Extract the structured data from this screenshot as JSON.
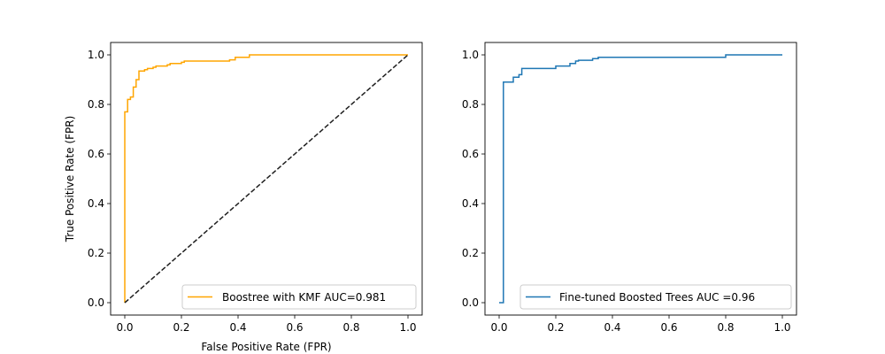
{
  "chart_data": [
    {
      "type": "line",
      "xlabel": "False Positive Rate (FPR)",
      "ylabel": "True Positive Rate (FPR)",
      "xlim": [
        -0.05,
        1.05
      ],
      "ylim": [
        -0.05,
        1.05
      ],
      "xticks": [
        "0.0",
        "0.2",
        "0.4",
        "0.6",
        "0.8",
        "1.0"
      ],
      "yticks": [
        "0.0",
        "0.2",
        "0.4",
        "0.6",
        "0.8",
        "1.0"
      ],
      "grid": false,
      "legend_position": "lower-right",
      "series": [
        {
          "name": "Boostree with KMF AUC=0.981",
          "color": "#ffa500",
          "style": "solid",
          "step": true,
          "x": [
            0.0,
            0.0,
            0.01,
            0.02,
            0.03,
            0.04,
            0.05,
            0.07,
            0.08,
            0.1,
            0.11,
            0.15,
            0.16,
            0.2,
            0.21,
            0.37,
            0.39,
            0.44,
            0.45,
            1.0
          ],
          "y": [
            0.0,
            0.77,
            0.82,
            0.83,
            0.87,
            0.9,
            0.935,
            0.94,
            0.945,
            0.95,
            0.955,
            0.96,
            0.965,
            0.97,
            0.975,
            0.98,
            0.99,
            1.0,
            1.0,
            1.0
          ]
        },
        {
          "name": "",
          "color": "#1f1f1f",
          "style": "dashed",
          "step": false,
          "x": [
            0.0,
            1.0
          ],
          "y": [
            0.0,
            1.0
          ]
        }
      ]
    },
    {
      "type": "line",
      "xlabel": "",
      "ylabel": "",
      "xlim": [
        -0.05,
        1.05
      ],
      "ylim": [
        -0.05,
        1.05
      ],
      "xticks": [
        "0.0",
        "0.2",
        "0.4",
        "0.6",
        "0.8",
        "1.0"
      ],
      "yticks": [
        "0.0",
        "0.2",
        "0.4",
        "0.6",
        "0.8",
        "1.0"
      ],
      "grid": false,
      "legend_position": "lower-right",
      "series": [
        {
          "name": "Fine-tuned Boosted Trees AUC =0.96",
          "color": "#1f77b4",
          "style": "solid",
          "step": true,
          "x": [
            0.0,
            0.015,
            0.015,
            0.05,
            0.07,
            0.08,
            0.2,
            0.25,
            0.27,
            0.28,
            0.33,
            0.35,
            0.8,
            0.82,
            1.0
          ],
          "y": [
            0.0,
            0.0,
            0.89,
            0.91,
            0.92,
            0.945,
            0.955,
            0.965,
            0.975,
            0.978,
            0.985,
            0.99,
            1.0,
            1.0,
            1.0
          ]
        }
      ]
    }
  ]
}
